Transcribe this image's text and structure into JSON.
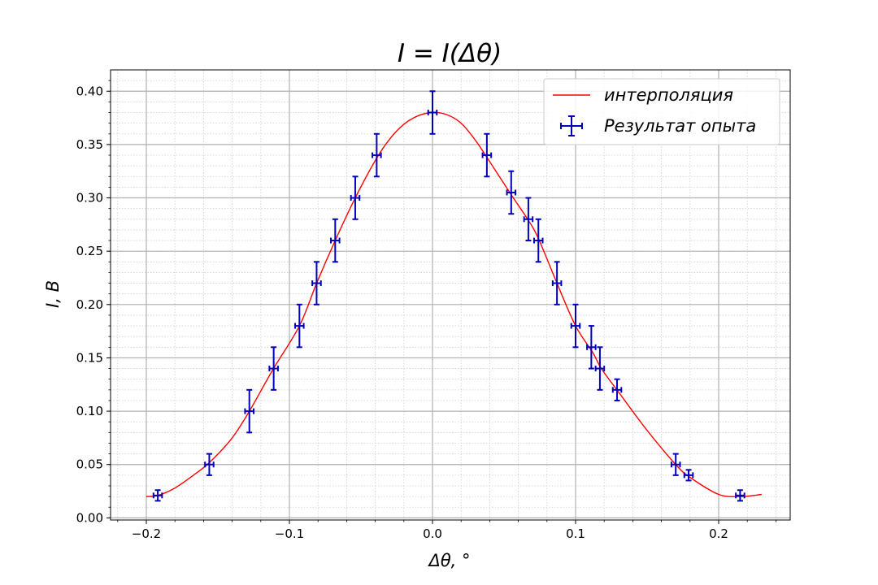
{
  "chart_data": {
    "type": "scatter",
    "title": "I = I(Δθ)",
    "xlabel": "Δθ,  °",
    "ylabel": "I, B",
    "xlim": [
      -0.225,
      0.25
    ],
    "ylim": [
      -0.002,
      0.42
    ],
    "x_ticks": [
      "−0.2",
      "−0.1",
      "0.0",
      "0.1",
      "0.2"
    ],
    "x_tick_values": [
      -0.2,
      -0.1,
      0.0,
      0.1,
      0.2
    ],
    "y_ticks": [
      "0.00",
      "0.05",
      "0.10",
      "0.15",
      "0.20",
      "0.25",
      "0.30",
      "0.35",
      "0.40"
    ],
    "y_tick_values": [
      0.0,
      0.05,
      0.1,
      0.15,
      0.2,
      0.25,
      0.3,
      0.35,
      0.4
    ],
    "grid": true,
    "minor_grid": true,
    "legend_position": "top-right",
    "series": [
      {
        "name": "интерполяция",
        "kind": "line",
        "color": "#ff0000",
        "x": [
          -0.2,
          -0.192,
          -0.18,
          -0.165,
          -0.155,
          -0.14,
          -0.128,
          -0.112,
          -0.093,
          -0.081,
          -0.068,
          -0.054,
          -0.04,
          -0.03,
          -0.02,
          -0.01,
          0.0,
          0.01,
          0.02,
          0.03,
          0.038,
          0.055,
          0.067,
          0.074,
          0.087,
          0.1,
          0.112,
          0.118,
          0.13,
          0.15,
          0.17,
          0.18,
          0.2,
          0.215,
          0.23
        ],
        "y": [
          0.02,
          0.021,
          0.028,
          0.042,
          0.053,
          0.075,
          0.1,
          0.138,
          0.18,
          0.22,
          0.26,
          0.3,
          0.335,
          0.355,
          0.369,
          0.377,
          0.38,
          0.378,
          0.37,
          0.354,
          0.338,
          0.303,
          0.279,
          0.262,
          0.22,
          0.18,
          0.155,
          0.14,
          0.118,
          0.082,
          0.05,
          0.038,
          0.022,
          0.02,
          0.022
        ]
      },
      {
        "name": "Результат опыта",
        "kind": "errorbar",
        "color": "#0000bb",
        "x": [
          -0.192,
          -0.156,
          -0.128,
          -0.111,
          -0.093,
          -0.081,
          -0.068,
          -0.054,
          -0.039,
          0.0,
          0.038,
          0.055,
          0.067,
          0.074,
          0.087,
          0.1,
          0.111,
          0.117,
          0.129,
          0.17,
          0.179,
          0.215
        ],
        "y": [
          0.021,
          0.05,
          0.1,
          0.14,
          0.18,
          0.22,
          0.26,
          0.3,
          0.34,
          0.38,
          0.34,
          0.305,
          0.28,
          0.26,
          0.22,
          0.18,
          0.16,
          0.14,
          0.12,
          0.05,
          0.04,
          0.021
        ],
        "yerr": [
          0.005,
          0.01,
          0.02,
          0.02,
          0.02,
          0.02,
          0.02,
          0.02,
          0.02,
          0.02,
          0.02,
          0.02,
          0.02,
          0.02,
          0.02,
          0.02,
          0.02,
          0.02,
          0.01,
          0.01,
          0.005,
          0.005
        ],
        "xerr": [
          0.003,
          0.003,
          0.003,
          0.003,
          0.003,
          0.003,
          0.003,
          0.003,
          0.003,
          0.003,
          0.003,
          0.003,
          0.003,
          0.003,
          0.003,
          0.003,
          0.003,
          0.003,
          0.003,
          0.003,
          0.003,
          0.003
        ]
      }
    ]
  }
}
